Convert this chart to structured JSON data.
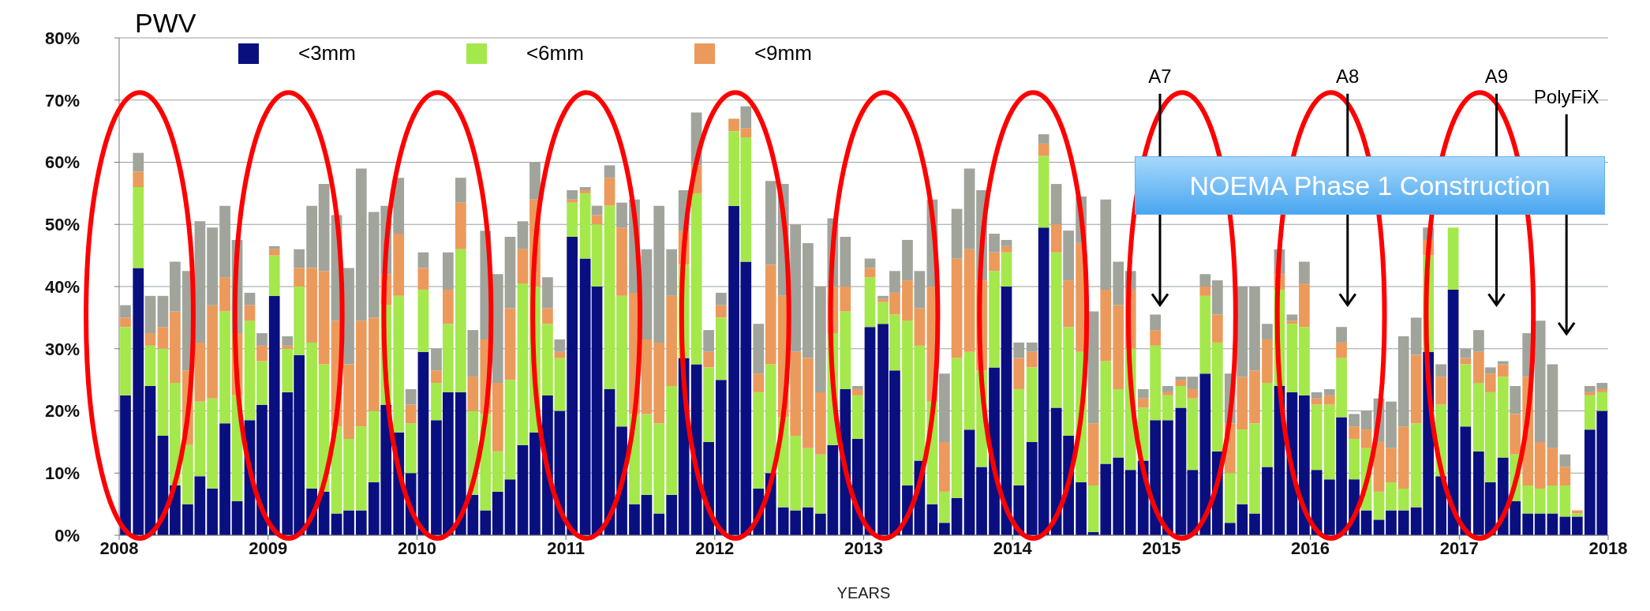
{
  "chart_data": {
    "type": "bar",
    "title": "PWV",
    "xlabel": "YEARS",
    "stacked": true,
    "grid": "y",
    "legend": "top",
    "x": [
      "2008-01-16",
      "2008-02-16",
      "2008-03-16",
      "2008-04-16",
      "2008-05-16",
      "2008-06-16",
      "2008-07-16",
      "2008-08-16",
      "2008-09-16",
      "2008-10-16",
      "2008-11-16",
      "2008-12-16",
      "2009-01-16",
      "2009-02-16",
      "2009-03-16",
      "2009-04-16",
      "2009-05-16",
      "2009-06-16",
      "2009-07-16",
      "2009-08-16",
      "2009-09-16",
      "2009-10-16",
      "2009-11-16",
      "2009-12-16",
      "2010-01-16",
      "2010-02-16",
      "2010-03-16",
      "2010-04-16",
      "2010-05-16",
      "2010-06-16",
      "2010-07-16",
      "2010-08-16",
      "2010-09-16",
      "2010-10-16",
      "2010-11-16",
      "2010-12-16",
      "2011-01-16",
      "2011-02-16",
      "2011-03-16",
      "2011-04-16",
      "2011-05-16",
      "2011-06-16",
      "2011-07-16",
      "2011-08-16",
      "2011-09-16",
      "2011-10-16",
      "2011-11-16",
      "2011-12-16",
      "2012-01-16",
      "2012-02-16",
      "2012-03-16",
      "2012-04-16",
      "2012-05-16",
      "2012-06-16",
      "2012-07-16",
      "2012-08-16",
      "2012-09-16",
      "2012-10-16",
      "2012-11-16",
      "2012-12-16",
      "2013-01-16",
      "2013-02-16",
      "2013-03-16",
      "2013-04-16",
      "2013-05-16",
      "2013-06-16",
      "2013-07-16",
      "2013-08-16",
      "2013-09-16",
      "2013-10-16",
      "2013-11-16",
      "2013-12-16",
      "2014-01-16",
      "2014-02-16",
      "2014-03-16",
      "2014-04-16",
      "2014-05-16",
      "2014-06-16",
      "2014-07-16",
      "2014-08-16",
      "2014-09-16",
      "2014-10-16",
      "2014-11-16",
      "2014-12-16",
      "2015-01-16",
      "2015-02-16",
      "2015-03-16",
      "2015-04-16",
      "2015-05-16",
      "2015-06-16",
      "2015-07-16",
      "2015-08-16",
      "2015-09-16",
      "2015-10-16",
      "2015-11-16",
      "2015-12-16",
      "2016-01-16",
      "2016-02-16",
      "2016-03-16",
      "2016-04-16",
      "2016-05-16",
      "2016-06-16",
      "2016-07-16",
      "2016-08-16",
      "2016-09-16",
      "2016-10-16",
      "2016-11-16",
      "2016-12-16",
      "2017-01-16",
      "2017-02-16",
      "2017-03-16",
      "2017-04-16",
      "2017-05-16",
      "2017-06-16",
      "2017-07-16",
      "2017-08-16",
      "2017-09-16",
      "2017-10-16",
      "2017-11-16",
      "2017-12-16"
    ],
    "series": [
      {
        "name": "<3mm",
        "color": "#0a0f80",
        "values": [
          22.5,
          43,
          24,
          16,
          8,
          5,
          9.5,
          7.5,
          18,
          5.5,
          18.5,
          21,
          38.5,
          23,
          29,
          7.5,
          7,
          3.5,
          4,
          4,
          8.5,
          21,
          16.5,
          10,
          29.5,
          18.5,
          23,
          23,
          6.5,
          4,
          7,
          9,
          14.5,
          16.5,
          22.5,
          20,
          48,
          44.5,
          40,
          23.5,
          17.5,
          5,
          6.5,
          3.5,
          6.5,
          28.5,
          27.5,
          15,
          25,
          53,
          44,
          7.5,
          10,
          4.5,
          4,
          4.5,
          3.5,
          14.5,
          23.5,
          15.5,
          33.5,
          34,
          26.5,
          8,
          12,
          5,
          2,
          6,
          17,
          11,
          27,
          40,
          8,
          15,
          49.5,
          20.5,
          16,
          8.5,
          0.5,
          11.5,
          12.5,
          10.5,
          12,
          18.5,
          18.5,
          20.5,
          10.5,
          26,
          13.5,
          2,
          5,
          3.5,
          11,
          24,
          23,
          22.5,
          10.5,
          9,
          19,
          9,
          4,
          2.5,
          4,
          4,
          4.5,
          29.5,
          9.5,
          39.5,
          17.5,
          13.5,
          8.5,
          12.5,
          5.5,
          3.5,
          3.5,
          3.5,
          3,
          3,
          17,
          20
        ]
      },
      {
        "name": "<6mm",
        "color": "#a4e84c",
        "values": [
          11,
          13,
          6.5,
          14,
          16.5,
          9.5,
          12,
          14.5,
          18,
          17,
          16,
          7,
          6.5,
          7,
          11,
          23.5,
          20.5,
          14,
          11.5,
          13.5,
          11.5,
          16,
          22,
          8,
          10,
          6,
          11,
          23,
          13.5,
          15.5,
          6.5,
          16,
          26,
          23.5,
          11.5,
          8.5,
          5.5,
          10.5,
          10,
          29.5,
          21,
          14.5,
          13,
          14.5,
          17.5,
          15,
          27.5,
          12,
          10,
          12,
          20,
          15.5,
          17.5,
          14.5,
          12,
          9.5,
          9.5,
          18,
          12.5,
          7,
          8,
          3.5,
          9,
          26.5,
          18.5,
          16.5,
          5,
          22.5,
          12.5,
          15.5,
          15.5,
          5.5,
          15.5,
          12,
          11.5,
          25,
          17.5,
          21,
          7.5,
          16.5,
          11,
          19.5,
          8.5,
          12,
          4,
          3.5,
          11.5,
          12.5,
          17.5,
          8,
          12,
          14.5,
          13.5,
          15.5,
          11,
          11,
          10.5,
          12,
          9.5,
          6.5,
          10,
          4.5,
          4.5,
          3.5,
          13.5,
          15.5,
          11.5,
          10,
          10,
          11,
          14.5,
          13,
          7.5,
          4.5,
          4,
          4.5,
          5,
          0.5,
          5.5,
          3
        ]
      },
      {
        "name": "<9mm",
        "color": "#eb9a5c",
        "values": [
          1.5,
          2.5,
          2,
          3.5,
          11.5,
          12,
          9.5,
          15,
          5.5,
          10,
          2.5,
          2.5,
          1,
          0.5,
          3,
          12,
          15,
          17,
          12,
          17,
          15,
          5,
          10,
          3,
          3.5,
          2,
          5.5,
          7.5,
          5.5,
          12,
          11,
          11.5,
          5.5,
          14,
          2.5,
          1,
          0.5,
          0.5,
          1.5,
          4.5,
          11,
          19.5,
          12,
          13,
          14.5,
          5.5,
          4.5,
          2.5,
          2,
          2,
          1.5,
          3,
          16,
          19.5,
          13.5,
          14.5,
          10,
          7.5,
          4,
          1,
          1.5,
          0.5,
          3.5,
          6.5,
          6,
          18.5,
          8,
          16,
          16.5,
          14.5,
          3,
          1,
          5,
          2.5,
          2,
          4.5,
          7.5,
          17.5,
          10,
          11.5,
          13.5,
          9.5,
          1.5,
          2.5,
          0.5,
          1,
          1.5,
          1.5,
          4.5,
          8,
          8.5,
          8.5,
          7,
          2.5,
          0.5,
          7,
          1,
          1.5,
          2.5,
          2,
          3,
          8,
          5.5,
          10,
          11,
          2.5,
          4.5,
          0,
          1,
          5,
          3,
          2,
          6.5,
          17.5,
          7.5,
          6,
          3,
          0.5,
          0.5,
          0.5
        ]
      },
      {
        "color": "#a0a49b",
        "values": [
          2,
          3,
          6,
          5,
          8,
          16,
          19.5,
          12.5,
          11.5,
          15,
          2,
          2,
          0.5,
          1.5,
          3,
          10,
          14,
          17,
          15.5,
          24.5,
          17,
          11,
          9,
          2.5,
          2.5,
          3.5,
          6,
          4,
          7.5,
          17.5,
          17.5,
          11.5,
          4.5,
          6,
          5,
          2,
          1.5,
          0.5,
          1.5,
          2,
          4,
          15,
          14.5,
          22,
          7.5,
          6.5,
          8.5,
          3.5,
          2,
          0,
          3.5,
          8,
          13.5,
          18,
          20.5,
          18.5,
          17,
          11,
          8,
          0.5,
          1.5,
          0.5,
          3.5,
          6.5,
          6,
          14,
          11,
          8,
          13,
          14.5,
          3,
          1,
          2.5,
          1.5,
          1.5,
          6.5,
          8,
          7.5,
          18,
          14.5,
          7,
          3,
          1.5,
          2.5,
          1,
          0.5,
          2,
          2,
          5.5,
          8,
          14.5,
          13.5,
          2.5,
          4,
          1,
          3.5,
          1,
          1,
          2.5,
          2,
          3,
          7,
          7.5,
          14.5,
          6,
          2,
          2,
          0,
          1.5,
          3.5,
          1,
          0.5,
          4.5,
          7,
          19.5,
          13.5,
          2,
          0,
          1,
          1
        ]
      }
    ],
    "xlim": [
      "2008",
      "2018"
    ],
    "xticks": [
      "2008",
      "2009",
      "2010",
      "2011",
      "2012",
      "2013",
      "2014",
      "2015",
      "2016",
      "2017",
      "2018"
    ],
    "ylim": [
      0,
      80
    ],
    "yticks": [
      {
        "value": 0,
        "label": "0%"
      },
      {
        "value": 10,
        "label": "10%"
      },
      {
        "value": 20,
        "label": "20%"
      },
      {
        "value": 30,
        "label": "30%"
      },
      {
        "value": 40,
        "label": "40%"
      },
      {
        "value": 50,
        "label": "50%"
      },
      {
        "value": 60,
        "label": "60%"
      },
      {
        "value": 70,
        "label": "70%"
      },
      {
        "value": 80,
        "label": "80%"
      }
    ],
    "annotations": [
      "A7",
      "A8",
      "A9",
      "PolyFiX",
      "NOEMA Phase 1 Construction"
    ]
  }
}
